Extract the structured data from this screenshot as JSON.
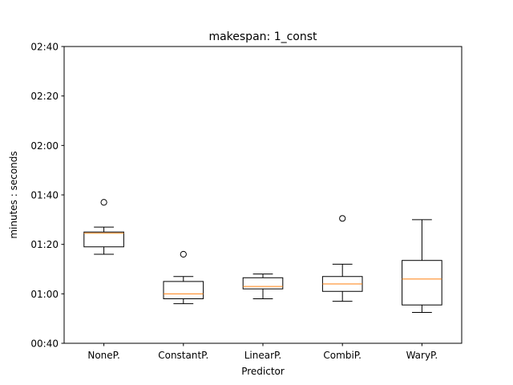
{
  "chart_data": {
    "type": "box",
    "title": "makespan: 1_const",
    "xlabel": "Predictor",
    "ylabel": "minutes : seconds",
    "categories": [
      "NoneP.",
      "ConstantP.",
      "LinearP.",
      "CombiP.",
      "WaryP."
    ],
    "y_unit": "seconds",
    "ylim": [
      40,
      160
    ],
    "yticks": [
      40,
      60,
      80,
      100,
      120,
      140,
      160
    ],
    "ytick_labels": [
      "00:40",
      "01:00",
      "01:20",
      "01:40",
      "02:00",
      "02:20",
      "02:40"
    ],
    "boxes": [
      {
        "whisker_low": 76,
        "q1": 79,
        "median": 84.5,
        "q3": 85,
        "whisker_high": 87,
        "outliers": [
          97
        ]
      },
      {
        "whisker_low": 56,
        "q1": 58,
        "median": 60,
        "q3": 65,
        "whisker_high": 67,
        "outliers": [
          76
        ]
      },
      {
        "whisker_low": 58,
        "q1": 62,
        "median": 63,
        "q3": 66.5,
        "whisker_high": 68,
        "outliers": []
      },
      {
        "whisker_low": 57,
        "q1": 61,
        "median": 64,
        "q3": 67,
        "whisker_high": 72,
        "outliers": [
          90.5
        ]
      },
      {
        "whisker_low": 52.5,
        "q1": 55.5,
        "median": 66,
        "q3": 73.5,
        "whisker_high": 90,
        "outliers": []
      }
    ],
    "colors": {
      "box": "#000000",
      "median": "#ff7f0e",
      "outlier": "#000000"
    },
    "grid": false,
    "legend": "none"
  }
}
